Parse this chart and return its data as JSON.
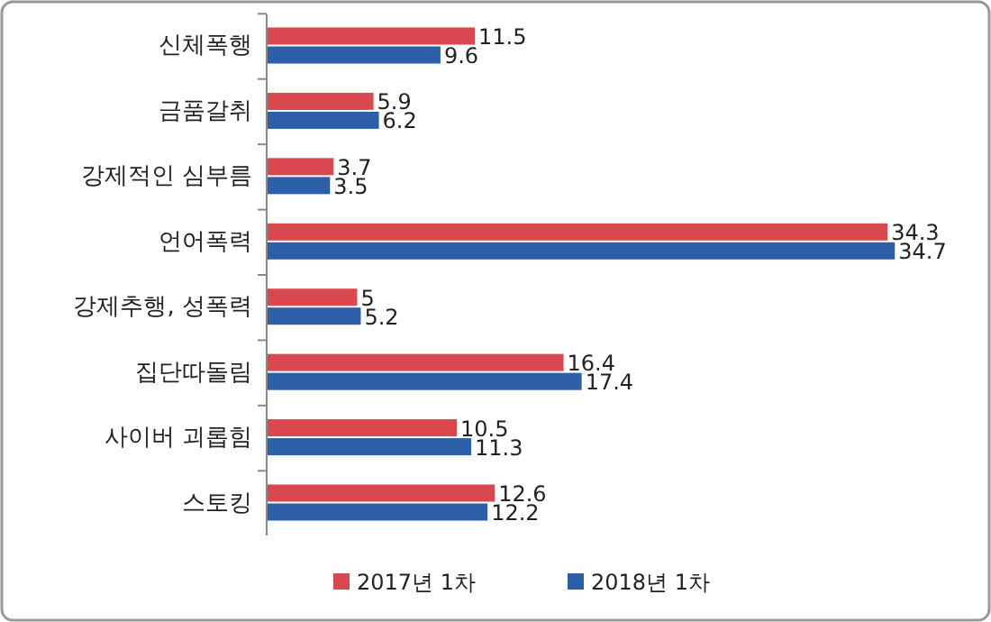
{
  "chart_data": {
    "type": "bar",
    "orientation": "horizontal",
    "categories": [
      "신체폭행",
      "금품갈취",
      "강제적인 심부름",
      "언어폭력",
      "강제추행, 성폭력",
      "집단따돌림",
      "사이버 괴롭힘",
      "스토킹"
    ],
    "series": [
      {
        "name": "2017년 1차",
        "color": "#d9474f",
        "values": [
          11.5,
          5.9,
          3.7,
          34.3,
          5,
          16.4,
          10.5,
          12.6
        ]
      },
      {
        "name": "2018년 1차",
        "color": "#2d5ea8",
        "values": [
          9.6,
          6.2,
          3.5,
          34.7,
          5.2,
          17.4,
          11.3,
          12.2
        ]
      }
    ],
    "data_labels": true,
    "legend": "bottom",
    "grid": false
  }
}
